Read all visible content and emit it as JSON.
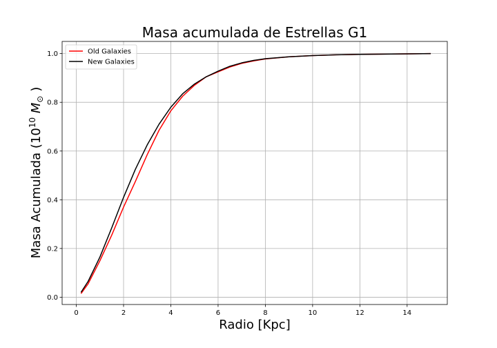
{
  "chart_data": {
    "type": "line",
    "title": "Masa acumulada de Estrellas G1",
    "xlabel": "Radio [Kpc]",
    "ylabel_parts": {
      "prefix": "Masa Acumulada (10",
      "exponent": "10",
      "unit": " M",
      "unit_sub": "⊙",
      "suffix": " )"
    },
    "xlim": [
      -0.6,
      15.7
    ],
    "ylim": [
      -0.03,
      1.05
    ],
    "x_ticks": [
      0,
      2,
      4,
      6,
      8,
      10,
      12,
      14
    ],
    "x_tick_labels": [
      "0",
      "2",
      "4",
      "6",
      "8",
      "10",
      "12",
      "14"
    ],
    "y_ticks": [
      0.0,
      0.2,
      0.4,
      0.6,
      0.8,
      1.0
    ],
    "y_tick_labels": [
      "0.0",
      "0.2",
      "0.4",
      "0.6",
      "0.8",
      "1.0"
    ],
    "grid": true,
    "legend_position": "top-left",
    "series": [
      {
        "name": "Old Galaxies",
        "color": "#ff0000",
        "points": [
          [
            0.2,
            0.015
          ],
          [
            0.5,
            0.055
          ],
          [
            1.0,
            0.15
          ],
          [
            1.5,
            0.255
          ],
          [
            2.0,
            0.37
          ],
          [
            2.5,
            0.475
          ],
          [
            3.0,
            0.585
          ],
          [
            3.5,
            0.685
          ],
          [
            4.0,
            0.765
          ],
          [
            4.5,
            0.825
          ],
          [
            5.0,
            0.87
          ],
          [
            5.5,
            0.905
          ],
          [
            6.0,
            0.925
          ],
          [
            6.5,
            0.945
          ],
          [
            7.0,
            0.96
          ],
          [
            7.5,
            0.97
          ],
          [
            8.0,
            0.978
          ],
          [
            9.0,
            0.987
          ],
          [
            10.0,
            0.992
          ],
          [
            11.0,
            0.995
          ],
          [
            12.0,
            0.997
          ],
          [
            13.0,
            0.998
          ],
          [
            14.0,
            0.999
          ],
          [
            15.0,
            1.0
          ]
        ]
      },
      {
        "name": "New Galaxies",
        "color": "#000000",
        "points": [
          [
            0.2,
            0.02
          ],
          [
            0.5,
            0.065
          ],
          [
            1.0,
            0.165
          ],
          [
            1.5,
            0.285
          ],
          [
            2.0,
            0.41
          ],
          [
            2.5,
            0.525
          ],
          [
            3.0,
            0.625
          ],
          [
            3.5,
            0.71
          ],
          [
            4.0,
            0.78
          ],
          [
            4.5,
            0.835
          ],
          [
            5.0,
            0.875
          ],
          [
            5.5,
            0.905
          ],
          [
            6.0,
            0.928
          ],
          [
            6.5,
            0.948
          ],
          [
            7.0,
            0.962
          ],
          [
            7.5,
            0.972
          ],
          [
            8.0,
            0.979
          ],
          [
            9.0,
            0.987
          ],
          [
            10.0,
            0.992
          ],
          [
            11.0,
            0.995
          ],
          [
            12.0,
            0.997
          ],
          [
            13.0,
            0.998
          ],
          [
            14.0,
            0.999
          ],
          [
            15.0,
            1.0
          ]
        ]
      }
    ]
  }
}
